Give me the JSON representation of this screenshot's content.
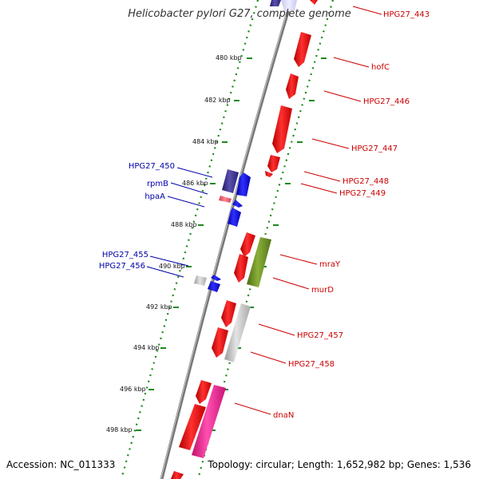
{
  "title": "Helicobacter pylori G27, complete genome",
  "footer": {
    "accession": "Accession: NC_011333",
    "topology": "Topology: circular; Length: 1,652,982 bp; Genes: 1,536"
  },
  "colors": {
    "reverse_label": "#0000aa",
    "forward_label": "#cc0000",
    "tick": "#1a8a1a",
    "backbone": "#777777"
  },
  "axis_ticks": [
    {
      "kbp": 480,
      "label": "480 kbp"
    },
    {
      "kbp": 482,
      "label": "482 kbp"
    },
    {
      "kbp": 484,
      "label": "484 kbp"
    },
    {
      "kbp": 486,
      "label": "486 kbp"
    },
    {
      "kbp": 488,
      "label": "488 kbp"
    },
    {
      "kbp": 490,
      "label": "490 kbp"
    },
    {
      "kbp": 492,
      "label": "492 kbp"
    },
    {
      "kbp": 494,
      "label": "494 kbp"
    },
    {
      "kbp": 496,
      "label": "496 kbp"
    },
    {
      "kbp": 498,
      "label": "498 kbp"
    }
  ],
  "genes": [
    {
      "label": "HPG27_443",
      "strand": "forward",
      "color": "#ff0000"
    },
    {
      "label": "hofC",
      "strand": "forward",
      "color": "#ff0000"
    },
    {
      "label": "HPG27_446",
      "strand": "forward",
      "color": "#ff0000"
    },
    {
      "label": "HPG27_447",
      "strand": "forward",
      "color": "#ff0000"
    },
    {
      "label": "HPG27_448",
      "strand": "forward",
      "color": "#ff0000"
    },
    {
      "label": "HPG27_449",
      "strand": "forward",
      "color": "#ff0000"
    },
    {
      "label": "HPG27_450",
      "strand": "reverse",
      "color": "#3a2f8c"
    },
    {
      "label": "rpmB",
      "strand": "reverse",
      "color": "#e06070"
    },
    {
      "label": "hpaA",
      "strand": "reverse",
      "color": "#0000ff"
    },
    {
      "label": "HPG27_455",
      "strand": "reverse",
      "color": "#aaaaaa"
    },
    {
      "label": "HPG27_456",
      "strand": "reverse",
      "color": "#0000ff"
    },
    {
      "label": "mraY",
      "strand": "forward",
      "color": "#ff0000"
    },
    {
      "label": "murD",
      "strand": "forward",
      "color": "#6b8e23"
    },
    {
      "label": "HPG27_457",
      "strand": "forward",
      "color": "#ff0000"
    },
    {
      "label": "HPG27_458",
      "strand": "forward",
      "color": "#bbbbbb"
    },
    {
      "label": "dnaN",
      "strand": "forward",
      "color": "#ff1493"
    }
  ]
}
